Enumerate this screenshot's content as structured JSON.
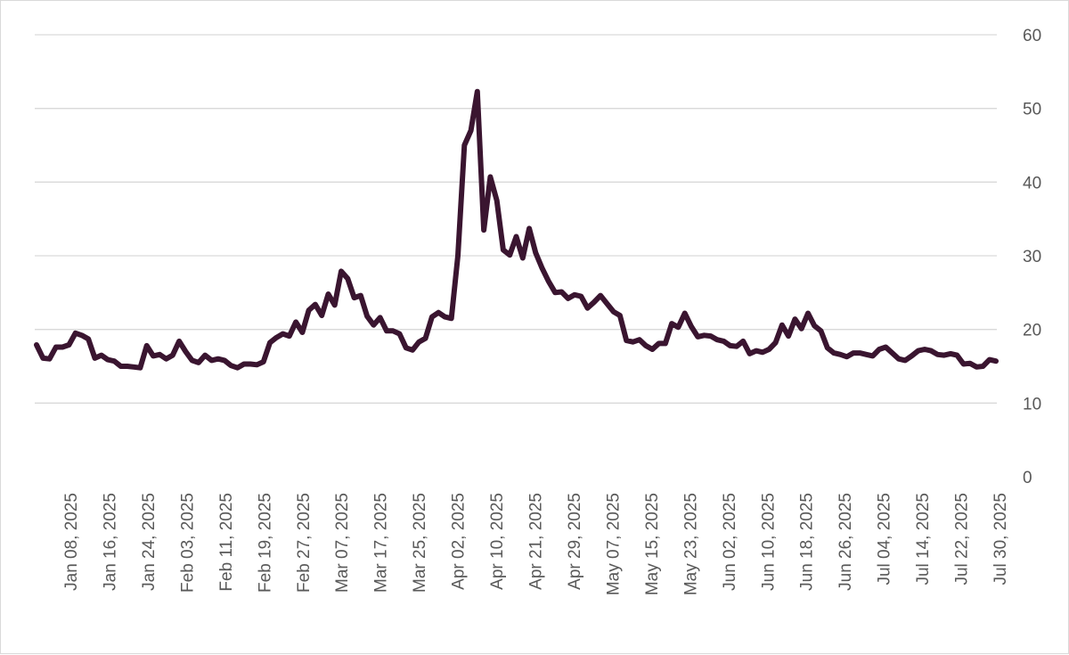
{
  "chart_data": {
    "type": "line",
    "title": "",
    "xlabel": "",
    "ylabel": "",
    "ylim": [
      0,
      60
    ],
    "yticks": [
      0,
      10,
      20,
      30,
      40,
      50,
      60
    ],
    "y_axis_side": "right",
    "grid": true,
    "legend": "none",
    "x_tick_labels": [
      "Jan 08, 2025",
      "Jan 16, 2025",
      "Jan 24, 2025",
      "Feb 03, 2025",
      "Feb 11, 2025",
      "Feb 19, 2025",
      "Feb 27, 2025",
      "Mar 07, 2025",
      "Mar 17, 2025",
      "Mar 25, 2025",
      "Apr 02, 2025",
      "Apr 10, 2025",
      "Apr 21, 2025",
      "Apr 29, 2025",
      "May 07, 2025",
      "May 15, 2025",
      "May 23, 2025",
      "Jun 02, 2025",
      "Jun 10, 2025",
      "Jun 18, 2025",
      "Jun 26, 2025",
      "Jul 04, 2025",
      "Jul 14, 2025",
      "Jul 22, 2025",
      "Jul 30, 2025"
    ],
    "series": [
      {
        "color": "#3a1530",
        "values": [
          17.9,
          16.1,
          16.0,
          17.6,
          17.6,
          17.9,
          19.5,
          19.2,
          18.7,
          16.1,
          16.5,
          15.9,
          15.7,
          15.0,
          15.0,
          14.9,
          14.8,
          17.8,
          16.4,
          16.6,
          16.0,
          16.5,
          18.4,
          17.0,
          15.8,
          15.5,
          16.5,
          15.8,
          16.0,
          15.8,
          15.1,
          14.8,
          15.3,
          15.3,
          15.2,
          15.6,
          18.2,
          18.9,
          19.4,
          19.1,
          21.0,
          19.6,
          22.6,
          23.4,
          21.9,
          24.8,
          23.3,
          27.9,
          26.9,
          24.3,
          24.6,
          21.8,
          20.6,
          21.6,
          19.8,
          19.8,
          19.4,
          17.5,
          17.2,
          18.3,
          18.8,
          21.7,
          22.3,
          21.7,
          21.5,
          30.0,
          45.0,
          47.0,
          52.3,
          33.5,
          40.7,
          37.5,
          30.8,
          30.1,
          32.6,
          29.7,
          33.7,
          30.4,
          28.3,
          26.5,
          25.0,
          25.1,
          24.2,
          24.7,
          24.5,
          22.9,
          23.7,
          24.6,
          23.5,
          22.4,
          21.9,
          18.5,
          18.3,
          18.6,
          17.8,
          17.3,
          18.1,
          18.1,
          20.8,
          20.3,
          22.2,
          20.4,
          19.0,
          19.2,
          19.1,
          18.6,
          18.4,
          17.8,
          17.7,
          18.4,
          16.7,
          17.1,
          16.9,
          17.3,
          18.2,
          20.6,
          19.1,
          21.4,
          20.1,
          22.2,
          20.5,
          19.8,
          17.5,
          16.8,
          16.6,
          16.3,
          16.8,
          16.8,
          16.6,
          16.4,
          17.3,
          17.6,
          16.8,
          16.0,
          15.8,
          16.4,
          17.1,
          17.3,
          17.1,
          16.6,
          16.5,
          16.7,
          16.5,
          15.3,
          15.4,
          14.9,
          15.0,
          15.9,
          15.7
        ]
      }
    ]
  }
}
